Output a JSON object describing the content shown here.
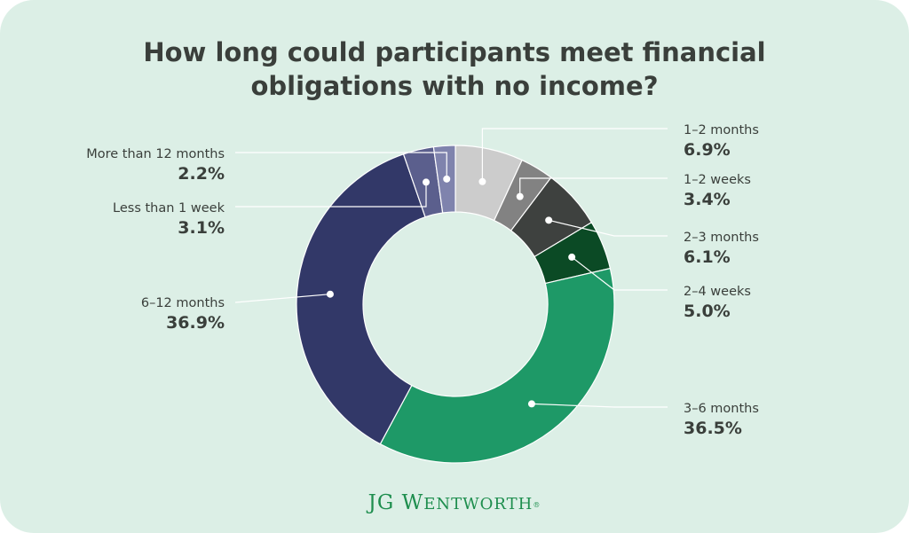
{
  "colors": {
    "background": "#dcefe6",
    "title": "#3a3f3b",
    "leader": "#ffffff",
    "brand": "#1e8e4e"
  },
  "logo_text": "JG Wentworth",
  "chart_data": {
    "type": "pie",
    "variant": "donut",
    "title": "How long could participants meet financial obligations with no income?",
    "title_lines": [
      "How long could participants meet financial",
      "obligations with no income?"
    ],
    "series": [
      {
        "label": "1–2 months",
        "value": 6.9,
        "value_label": "6.9%",
        "color": "#cccccc"
      },
      {
        "label": "1–2 weeks",
        "value": 3.4,
        "value_label": "3.4%",
        "color": "#828282"
      },
      {
        "label": "2–3 months",
        "value": 6.1,
        "value_label": "6.1%",
        "color": "#3e413f"
      },
      {
        "label": "2–4 weeks",
        "value": 5.0,
        "value_label": "5.0%",
        "color": "#0b4a25"
      },
      {
        "label": "3–6 months",
        "value": 36.5,
        "value_label": "36.5%",
        "color": "#1e9967"
      },
      {
        "label": "6–12 months",
        "value": 36.9,
        "value_label": "36.9%",
        "color": "#323868"
      },
      {
        "label": "Less than 1 week",
        "value": 3.1,
        "value_label": "3.1%",
        "color": "#5b5f8d"
      },
      {
        "label": "More than 12 months",
        "value": 2.2,
        "value_label": "2.2%",
        "color": "#7f83ad"
      }
    ]
  }
}
